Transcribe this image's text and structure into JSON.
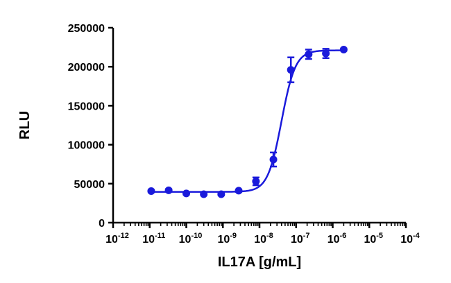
{
  "chart_data": {
    "type": "scatter",
    "title": "",
    "xlabel": "IL17A [g/mL]",
    "ylabel": "RLU",
    "xscale": "log",
    "xlim": [
      1e-12,
      0.0001
    ],
    "ylim": [
      0,
      250000
    ],
    "grid": false,
    "legend": "none",
    "x_tick_base": "10",
    "x_tick_exponents": [
      "-12",
      "-11",
      "-10",
      "-9",
      "-8",
      "-7",
      "-6",
      "-5",
      "-4"
    ],
    "y_ticks": [
      "0",
      "50000",
      "100000",
      "150000",
      "200000",
      "250000"
    ],
    "series": [
      {
        "color": "#1a1adb",
        "points": [
          {
            "x": 1.1e-11,
            "y": 40500,
            "err": 1500
          },
          {
            "x": 3.3e-11,
            "y": 41500,
            "err": 1500
          },
          {
            "x": 1e-10,
            "y": 37500,
            "err": 1500
          },
          {
            "x": 3e-10,
            "y": 36500,
            "err": 1500
          },
          {
            "x": 9e-10,
            "y": 36500,
            "err": 1500
          },
          {
            "x": 2.7e-09,
            "y": 41000,
            "err": 1500
          },
          {
            "x": 8e-09,
            "y": 53000,
            "err": 5000
          },
          {
            "x": 2.4e-08,
            "y": 81000,
            "err": 9000
          },
          {
            "x": 7.2e-08,
            "y": 196000,
            "err": 16000
          },
          {
            "x": 2.2e-07,
            "y": 216000,
            "err": 6000
          },
          {
            "x": 6.5e-07,
            "y": 217000,
            "err": 6000
          },
          {
            "x": 2e-06,
            "y": 222000,
            "err": 1500
          }
        ],
        "fit": {
          "model": "4PL",
          "bottom": 39500,
          "top": 221000,
          "ec50": 4e-08,
          "hill": 2.3
        }
      }
    ]
  }
}
